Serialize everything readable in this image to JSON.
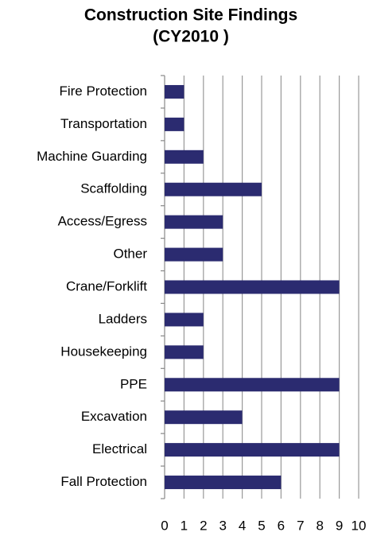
{
  "chart_data": {
    "type": "barh",
    "title": [
      "Construction Site Findings",
      "(CY2010 )"
    ],
    "categories": [
      "Fire Protection",
      "Transportation",
      "Machine Guarding",
      "Scaffolding",
      "Access/Egress",
      "Other",
      "Crane/Forklift",
      "Ladders",
      "Housekeeping",
      "PPE",
      "Excavation",
      "Electrical",
      "Fall Protection"
    ],
    "values": [
      1,
      1,
      2,
      5,
      3,
      3,
      9,
      2,
      2,
      9,
      4,
      9,
      6
    ],
    "color": "#2b2b70",
    "xlim": [
      0,
      10
    ],
    "xticks": [
      0,
      1,
      2,
      3,
      4,
      5,
      6,
      7,
      8,
      9,
      10
    ],
    "grid": true
  }
}
